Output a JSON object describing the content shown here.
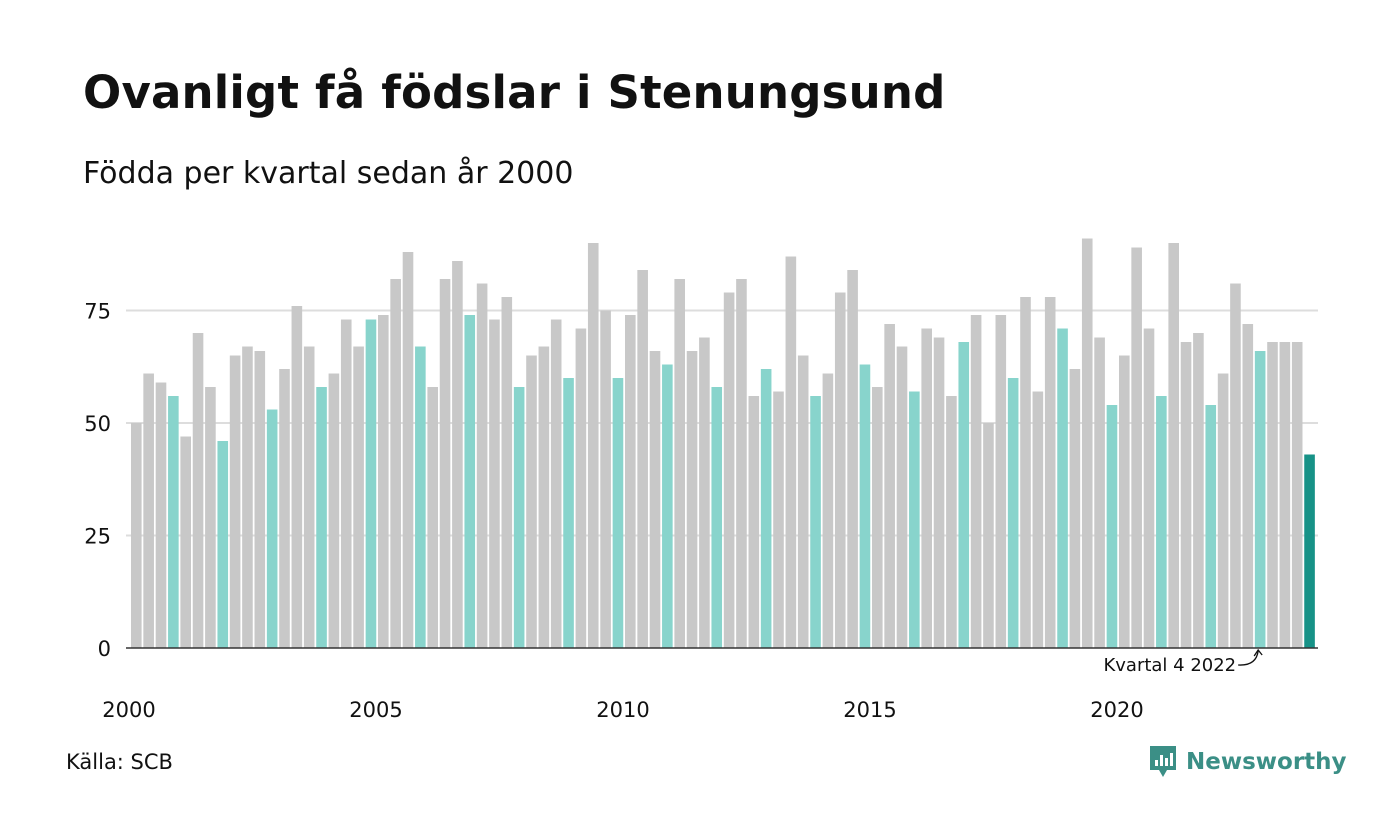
{
  "title": "Ovanligt få födslar i Stenungsund",
  "subtitle": "Födda per kvartal sedan år 2000",
  "source": "Källa: SCB",
  "brand": {
    "name": "Newsworthy",
    "icon": "bar-chart-speech-bubble-icon"
  },
  "colors": {
    "other_quarters": "#c8c8c8",
    "same_quarter": "#88d4cc",
    "latest": "#179287",
    "grid": "#dddddd",
    "axis": "#333333",
    "brand": "#3b8f86"
  },
  "chart_data": {
    "type": "bar",
    "x_tick_labels": [
      "2000",
      "2005",
      "2010",
      "2015",
      "2020"
    ],
    "y_ticks": [
      0,
      25,
      50,
      75
    ],
    "ylim": [
      0,
      95
    ],
    "grid": true,
    "start_year": 2000,
    "periods_per_year": 4,
    "values": [
      50,
      61,
      59,
      56,
      47,
      70,
      58,
      46,
      65,
      67,
      66,
      53,
      62,
      76,
      67,
      58,
      61,
      73,
      67,
      73,
      74,
      82,
      88,
      67,
      58,
      82,
      86,
      74,
      81,
      73,
      78,
      58,
      65,
      67,
      73,
      60,
      71,
      90,
      75,
      60,
      74,
      84,
      66,
      63,
      82,
      66,
      69,
      58,
      79,
      82,
      56,
      62,
      57,
      87,
      65,
      56,
      61,
      79,
      84,
      63,
      58,
      72,
      67,
      57,
      71,
      69,
      56,
      68,
      74,
      50,
      74,
      60,
      78,
      57,
      78,
      71,
      62,
      91,
      69,
      54,
      65,
      89,
      71,
      56,
      90,
      68,
      70,
      54,
      61,
      81,
      72,
      66,
      68,
      68,
      68,
      43
    ],
    "annotation": {
      "text": "Kvartal 4 2022",
      "target_index": 91
    }
  }
}
